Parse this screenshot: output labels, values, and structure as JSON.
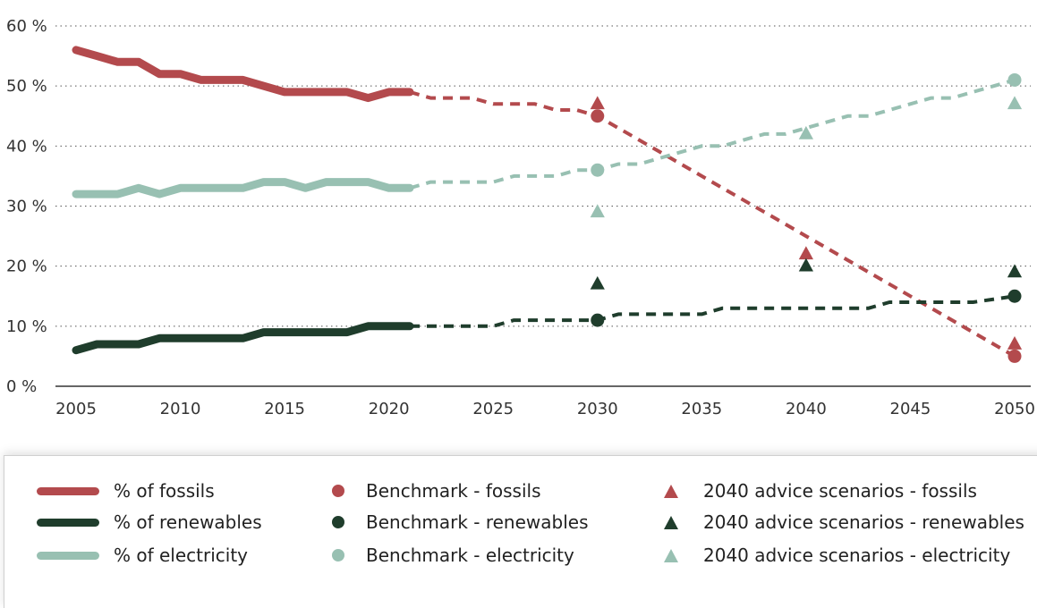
{
  "chart_data": {
    "type": "line",
    "title": "",
    "xlabel": "",
    "ylabel": "",
    "xlim": [
      2005,
      2050
    ],
    "ylim": [
      0,
      60
    ],
    "y_ticks": [
      0,
      10,
      20,
      30,
      40,
      50,
      60
    ],
    "y_tick_labels": [
      "0 %",
      "10 %",
      "20 %",
      "30 %",
      "40 %",
      "50 %",
      "60 %"
    ],
    "x_ticks": [
      2005,
      2010,
      2015,
      2020,
      2025,
      2030,
      2035,
      2040,
      2045,
      2050
    ],
    "x_tick_labels": [
      "2005",
      "2010",
      "2015",
      "2020",
      "2025",
      "2030",
      "2035",
      "2040",
      "2045",
      "2050"
    ],
    "grid": "horizontal dotted",
    "colors": {
      "fossils": "#b34a4d",
      "renewables": "#1f3d2c",
      "electricity": "#98c0b2"
    },
    "series": [
      {
        "name": "% of fossils",
        "key": "fossils",
        "style": "solid",
        "x": [
          2005,
          2006,
          2007,
          2008,
          2009,
          2010,
          2011,
          2012,
          2013,
          2014,
          2015,
          2016,
          2017,
          2018,
          2019,
          2020,
          2021
        ],
        "y": [
          56,
          55,
          54,
          54,
          52,
          52,
          51,
          51,
          51,
          50,
          49,
          49,
          49,
          49,
          48,
          49,
          49
        ]
      },
      {
        "name": "% of renewables",
        "key": "renewables",
        "style": "solid",
        "x": [
          2005,
          2006,
          2007,
          2008,
          2009,
          2010,
          2011,
          2012,
          2013,
          2014,
          2015,
          2016,
          2017,
          2018,
          2019,
          2020,
          2021
        ],
        "y": [
          6,
          7,
          7,
          7,
          8,
          8,
          8,
          8,
          8,
          9,
          9,
          9,
          9,
          9,
          10,
          10,
          10
        ]
      },
      {
        "name": "% of electricity",
        "key": "electricity",
        "style": "solid",
        "x": [
          2005,
          2006,
          2007,
          2008,
          2009,
          2010,
          2011,
          2012,
          2013,
          2014,
          2015,
          2016,
          2017,
          2018,
          2019,
          2020,
          2021
        ],
        "y": [
          32,
          32,
          32,
          33,
          32,
          33,
          33,
          33,
          33,
          34,
          34,
          33,
          34,
          34,
          34,
          33,
          33
        ]
      },
      {
        "key": "fossils",
        "style": "dashed",
        "x": [
          2021,
          2022,
          2024,
          2025,
          2027,
          2028,
          2029,
          2030,
          2032,
          2034,
          2036,
          2038,
          2040,
          2042,
          2044,
          2046,
          2048,
          2050
        ],
        "y": [
          49,
          48,
          48,
          47,
          47,
          46,
          46,
          45,
          41,
          37,
          33,
          29,
          25,
          21,
          17,
          13,
          9,
          5
        ]
      },
      {
        "key": "renewables",
        "style": "dashed",
        "x": [
          2021,
          2025,
          2026,
          2030,
          2031,
          2035,
          2036,
          2040,
          2042,
          2043,
          2044,
          2048,
          2050
        ],
        "y": [
          10,
          10,
          11,
          11,
          12,
          12,
          13,
          13,
          13,
          13,
          14,
          14,
          15
        ]
      },
      {
        "key": "electricity",
        "style": "dashed",
        "x": [
          2021,
          2022,
          2025,
          2026,
          2028,
          2029,
          2030,
          2031,
          2032,
          2033,
          2034,
          2035,
          2036,
          2037,
          2038,
          2039,
          2040,
          2041,
          2042,
          2043,
          2044,
          2045,
          2046,
          2047,
          2048,
          2049,
          2050
        ],
        "y": [
          33,
          34,
          34,
          35,
          35,
          36,
          36,
          37,
          37,
          38,
          39,
          40,
          40,
          41,
          42,
          42,
          43,
          44,
          45,
          45,
          46,
          47,
          48,
          48,
          49,
          50,
          51
        ]
      }
    ],
    "benchmark_points": [
      {
        "key": "fossils",
        "x": 2030,
        "y": 45
      },
      {
        "key": "fossils",
        "x": 2050,
        "y": 5
      },
      {
        "key": "renewables",
        "x": 2030,
        "y": 11
      },
      {
        "key": "renewables",
        "x": 2050,
        "y": 15
      },
      {
        "key": "electricity",
        "x": 2030,
        "y": 36
      },
      {
        "key": "electricity",
        "x": 2050,
        "y": 51
      }
    ],
    "scenario_points": [
      {
        "key": "fossils",
        "x": 2030,
        "y": 47
      },
      {
        "key": "fossils",
        "x": 2040,
        "y": 22
      },
      {
        "key": "fossils",
        "x": 2050,
        "y": 7
      },
      {
        "key": "renewables",
        "x": 2030,
        "y": 17
      },
      {
        "key": "renewables",
        "x": 2040,
        "y": 20
      },
      {
        "key": "renewables",
        "x": 2050,
        "y": 19
      },
      {
        "key": "electricity",
        "x": 2030,
        "y": 29
      },
      {
        "key": "electricity",
        "x": 2040,
        "y": 42
      },
      {
        "key": "electricity",
        "x": 2050,
        "y": 47
      }
    ],
    "legend": [
      {
        "label": "% of fossils",
        "marker": "line",
        "key": "fossils"
      },
      {
        "label": "% of renewables",
        "marker": "line",
        "key": "renewables"
      },
      {
        "label": "% of electricity",
        "marker": "line",
        "key": "electricity"
      },
      {
        "label": "Benchmark - fossils",
        "marker": "circle",
        "key": "fossils"
      },
      {
        "label": "Benchmark - renewables",
        "marker": "circle",
        "key": "renewables"
      },
      {
        "label": "Benchmark - electricity",
        "marker": "circle",
        "key": "electricity"
      },
      {
        "label": "2040 advice scenarios - fossils",
        "marker": "triangle",
        "key": "fossils"
      },
      {
        "label": "2040 advice scenarios - renewables",
        "marker": "triangle",
        "key": "renewables"
      },
      {
        "label": "2040 advice scenarios - electricity",
        "marker": "triangle",
        "key": "electricity"
      }
    ],
    "legend_position": "bottom"
  }
}
